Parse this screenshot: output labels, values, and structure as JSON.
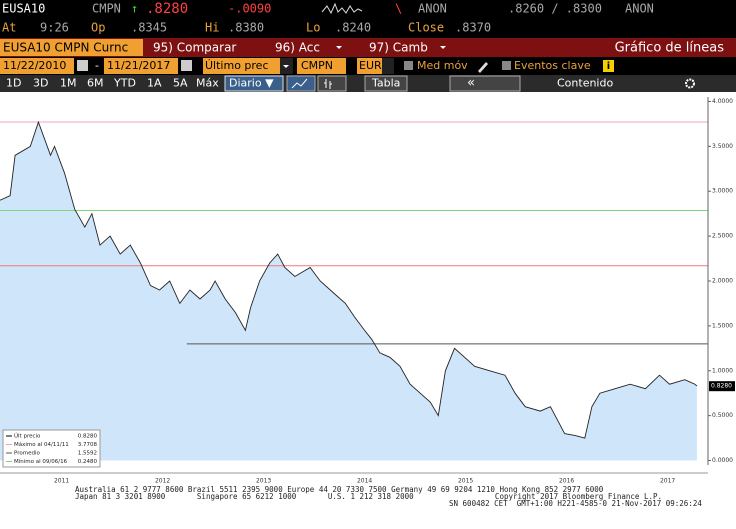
{
  "quote": {
    "ticker": "EUSA10",
    "source": "CMPN",
    "arrow": "↑",
    "last": ".8280",
    "change": "-.0090",
    "tick_mark": "\\",
    "bid_src": "ANON",
    "bid_ask": ".8260 / .8300",
    "ask_src": "ANON",
    "at_label": "At",
    "at": "9:26",
    "op_label": "Op",
    "op": ".8345",
    "hi_label": "Hi",
    "hi": ".8380",
    "lo_label": "Lo",
    "lo": ".8240",
    "close_label": "Close",
    "close": ".8370"
  },
  "menu": {
    "security": "EUSA10 CMPN Curnc",
    "compare": "95) Comparar",
    "actions": "96) Acc",
    "change": "97) Camb",
    "chart_name": "Gráfico de líneas"
  },
  "settings": {
    "start": "11/22/2010",
    "dash": "-",
    "end": "11/21/2017",
    "field": "Último prec",
    "source": "CMPN",
    "currency": "EUR",
    "moving_avg": "Med móv",
    "key_events": "Eventos clave",
    "info": "i"
  },
  "periods": [
    "1D",
    "3D",
    "1M",
    "6M",
    "YTD",
    "1A",
    "5A",
    "Máx"
  ],
  "frequency": "Diario ▼",
  "table": "Tabla",
  "collapse": "«",
  "content": "Contenido",
  "legend": [
    {
      "label": "Últ precio",
      "value": "0.8280"
    },
    {
      "label": "Máximo al 04/11/11",
      "value": "3.7708"
    },
    {
      "label": "Promedio",
      "value": "1.5592"
    },
    {
      "label": "Mínimo al 09/06/16",
      "value": "0.2480"
    }
  ],
  "footer": [
    "Australia 61 2 9777 8600 Brazil 5511 2395 9000 Europe 44 20 7330 7500 Germany 49 69 9204 1210 Hong Kong 852 2977 6000",
    "Japan 81 3 3201 8900       Singapore 65 6212 1000       U.S. 1 212 318 2000                  Copyright 2017 Bloomberg Finance L.P.",
    "SN 600482 CET  GMT+1:00 H221-4585-0 21-Nov-2017 09:26:24"
  ],
  "chart_data": {
    "type": "area",
    "x": [
      2010.89,
      2010.99,
      2011.04,
      2011.19,
      2011.27,
      2011.39,
      2011.43,
      2011.53,
      2011.63,
      2011.73,
      2011.8,
      2011.88,
      2011.98,
      2012.08,
      2012.18,
      2012.28,
      2012.38,
      2012.47,
      2012.57,
      2012.67,
      2012.77,
      2012.87,
      2012.97,
      2013.02,
      2013.12,
      2013.22,
      2013.32,
      2013.37,
      2013.46,
      2013.56,
      2013.64,
      2013.71,
      2013.81,
      2013.96,
      2014.06,
      2014.21,
      2014.31,
      2014.4,
      2014.5,
      2014.57,
      2014.65,
      2014.75,
      2014.85,
      2014.95,
      2015.05,
      2015.15,
      2015.23,
      2015.3,
      2015.39,
      2015.49,
      2015.59,
      2015.74,
      2015.89,
      2015.99,
      2016.09,
      2016.24,
      2016.34,
      2016.41,
      2016.48,
      2016.58,
      2016.68,
      2016.75,
      2016.83,
      2016.98,
      2017.13,
      2017.28,
      2017.42,
      2017.52,
      2017.67,
      2017.77,
      2017.79
    ],
    "values": [
      2.9,
      2.95,
      3.4,
      3.5,
      3.77,
      3.4,
      3.5,
      3.2,
      2.8,
      2.6,
      2.75,
      2.4,
      2.5,
      2.3,
      2.4,
      2.2,
      1.95,
      1.9,
      2.0,
      1.75,
      1.9,
      1.8,
      1.9,
      2.0,
      1.8,
      1.65,
      1.45,
      1.7,
      2.0,
      2.2,
      2.3,
      2.15,
      2.05,
      2.15,
      2.0,
      1.85,
      1.75,
      1.6,
      1.45,
      1.35,
      1.2,
      1.15,
      1.05,
      0.85,
      0.75,
      0.65,
      0.5,
      1.0,
      1.25,
      1.15,
      1.05,
      1.0,
      0.95,
      0.75,
      0.6,
      0.55,
      0.6,
      0.45,
      0.3,
      0.28,
      0.25,
      0.6,
      0.75,
      0.8,
      0.85,
      0.8,
      0.95,
      0.85,
      0.9,
      0.85,
      0.83
    ],
    "color": "#222222",
    "fill": "#cfe5fa",
    "xlim": [
      2010.89,
      2017.9
    ],
    "xticks": [
      {
        "value": 2011.5,
        "label": "2011"
      },
      {
        "value": 2012.5,
        "label": "2012"
      },
      {
        "value": 2013.5,
        "label": "2013"
      },
      {
        "value": 2014.5,
        "label": "2014"
      },
      {
        "value": 2015.5,
        "label": "2015"
      },
      {
        "value": 2016.5,
        "label": "2016"
      },
      {
        "value": 2017.5,
        "label": "2017"
      }
    ],
    "ylim": [
      -0.05,
      4.05
    ],
    "yticks": [
      {
        "value": 0,
        "label": "0.0000"
      },
      {
        "value": 0.5,
        "label": "0.5000"
      },
      {
        "value": 1,
        "label": "1.0000"
      },
      {
        "value": 1.5,
        "label": "1.5000"
      },
      {
        "value": 2,
        "label": "2.0000"
      },
      {
        "value": 2.5,
        "label": "2.5000"
      },
      {
        "value": 3,
        "label": "3.0000"
      },
      {
        "value": 3.5,
        "label": "3.5000"
      },
      {
        "value": 4,
        "label": "4.0000"
      }
    ],
    "last_price": {
      "value": 0.828,
      "label": "0.8280"
    },
    "ref_lines": [
      {
        "value": 3.7708,
        "color": "#f0a0c8"
      },
      {
        "value": 2.785,
        "color": "#7cd67c"
      },
      {
        "value": 2.17,
        "color": "#ee7b7b"
      },
      {
        "value": 1.3,
        "color": "#555555",
        "x_start": 2012.74
      }
    ]
  }
}
